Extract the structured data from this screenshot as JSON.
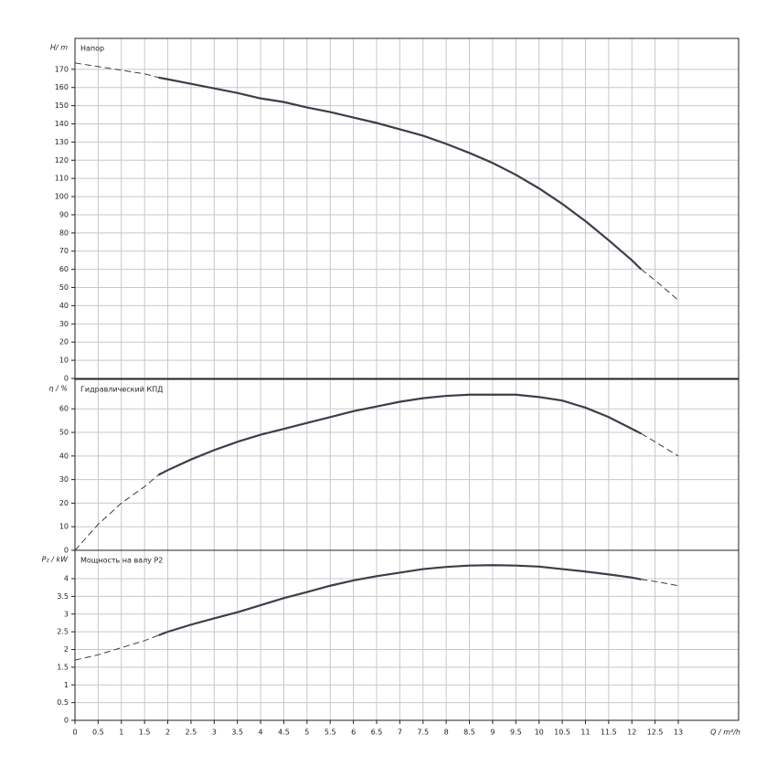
{
  "chart_data": [
    {
      "type": "line",
      "title": "Напор",
      "ylabel": "H/ m",
      "x": [
        0,
        0.5,
        1,
        1.5,
        1.8,
        2,
        2.5,
        3,
        3.5,
        4,
        4.5,
        5,
        5.5,
        6,
        6.5,
        7,
        7.5,
        8,
        8.5,
        9,
        9.5,
        10,
        10.5,
        11,
        11.5,
        12,
        12.2,
        12.5,
        13
      ],
      "series": [
        {
          "color": "#3a3f4a",
          "style": "solid",
          "values": [
            null,
            null,
            null,
            null,
            165.5,
            164.5,
            162,
            159.5,
            157,
            154,
            152,
            149,
            146.5,
            143.5,
            140.5,
            137,
            133.5,
            129,
            124,
            118.5,
            112,
            104.5,
            96,
            86.5,
            76,
            65,
            60,
            null,
            null
          ]
        },
        {
          "color": "#3a3f4a",
          "style": "dashed",
          "values": [
            173.5,
            171.5,
            169.5,
            167.5,
            165.5,
            null,
            null,
            null,
            null,
            null,
            null,
            null,
            null,
            null,
            null,
            null,
            null,
            null,
            null,
            null,
            null,
            null,
            null,
            null,
            null,
            null,
            60,
            54,
            43
          ]
        }
      ],
      "xlim": [
        0,
        14.3
      ],
      "ylim": [
        0,
        187
      ],
      "yticks": [
        0,
        10,
        20,
        30,
        40,
        50,
        60,
        70,
        80,
        90,
        100,
        110,
        120,
        130,
        140,
        150,
        160,
        170
      ],
      "grid": true
    },
    {
      "type": "line",
      "title": "Гидравлический КПД",
      "ylabel": "η / %",
      "x": [
        0,
        0.5,
        1,
        1.5,
        1.8,
        2,
        2.5,
        3,
        3.5,
        4,
        4.5,
        5,
        5.5,
        6,
        6.5,
        7,
        7.5,
        8,
        8.5,
        9,
        9.5,
        10,
        10.5,
        11,
        11.5,
        12,
        12.2,
        12.5,
        13
      ],
      "series": [
        {
          "color": "#3a3f4a",
          "style": "solid",
          "values": [
            null,
            null,
            null,
            null,
            32,
            34,
            38.5,
            42.5,
            46,
            49,
            51.5,
            54,
            56.5,
            59,
            61,
            63,
            64.5,
            65.5,
            66,
            66,
            66,
            65,
            63.5,
            60.5,
            56.5,
            51.5,
            49.5,
            null,
            null
          ]
        },
        {
          "color": "#3a3f4a",
          "style": "dashed",
          "values": [
            0,
            11,
            20,
            27,
            32,
            null,
            null,
            null,
            null,
            null,
            null,
            null,
            null,
            null,
            null,
            null,
            null,
            null,
            null,
            null,
            null,
            null,
            null,
            null,
            null,
            null,
            49.5,
            46,
            40
          ]
        }
      ],
      "xlim": [
        0,
        14.3
      ],
      "ylim": [
        0,
        72.5
      ],
      "yticks": [
        0,
        10,
        20,
        30,
        40,
        50,
        60
      ],
      "grid": true
    },
    {
      "type": "line",
      "title": "Мощность на валу P2",
      "ylabel": "P₂ / kW",
      "xlabel": "Q / m³/h",
      "x": [
        0,
        0.5,
        1,
        1.5,
        1.8,
        2,
        2.5,
        3,
        3.5,
        4,
        4.5,
        5,
        5.5,
        6,
        6.5,
        7,
        7.5,
        8,
        8.5,
        9,
        9.5,
        10,
        10.5,
        11,
        11.5,
        12,
        12.2,
        12.5,
        13
      ],
      "series": [
        {
          "color": "#3a3f4a",
          "style": "solid",
          "values": [
            null,
            null,
            null,
            null,
            2.4,
            2.5,
            2.7,
            2.88,
            3.05,
            3.25,
            3.45,
            3.62,
            3.8,
            3.95,
            4.07,
            4.17,
            4.27,
            4.33,
            4.37,
            4.38,
            4.37,
            4.34,
            4.27,
            4.2,
            4.12,
            4.03,
            3.98,
            null,
            null
          ]
        },
        {
          "color": "#3a3f4a",
          "style": "dashed",
          "values": [
            1.7,
            1.85,
            2.05,
            2.25,
            2.4,
            null,
            null,
            null,
            null,
            null,
            null,
            null,
            null,
            null,
            null,
            null,
            null,
            null,
            null,
            null,
            null,
            null,
            null,
            null,
            null,
            null,
            3.98,
            3.92,
            3.8
          ]
        }
      ],
      "xlim": [
        0,
        14.3
      ],
      "ylim": [
        0,
        4.8
      ],
      "xticks": [
        0,
        0.5,
        1,
        1.5,
        2,
        2.5,
        3,
        3.5,
        4,
        4.5,
        5,
        5.5,
        6,
        6.5,
        7,
        7.5,
        8,
        8.5,
        9,
        9.5,
        10,
        10.5,
        11,
        11.5,
        12,
        12.5,
        13
      ],
      "yticks": [
        0,
        0.5,
        1,
        1.5,
        2,
        2.5,
        3,
        3.5,
        4
      ],
      "grid": true
    }
  ]
}
